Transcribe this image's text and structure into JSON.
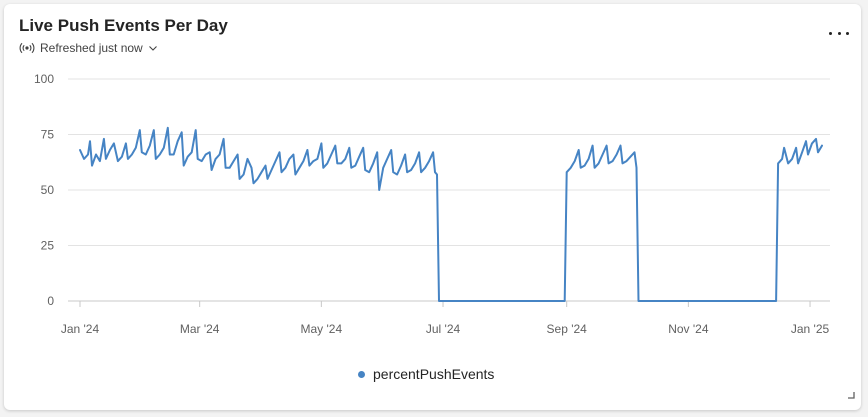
{
  "card": {
    "title": "Live Push Events Per Day",
    "refresh_label": "Refreshed just now",
    "refresh_icon": "broadcast-icon",
    "dropdown_icon": "chevron-down-icon",
    "more_icon": "more-horizontal-icon"
  },
  "colors": {
    "line": "#4684c4",
    "grid": "#e3e3e3",
    "axis": "#c8c8c8",
    "text": "#616161"
  },
  "chart_data": {
    "type": "line",
    "title": "Live Push Events Per Day",
    "xlabel": "",
    "ylabel": "",
    "ylim": [
      0,
      100
    ],
    "yticks": [
      0,
      25,
      50,
      75,
      100
    ],
    "xlim": [
      "2024-01-01",
      "2025-01-08"
    ],
    "xticks": [
      {
        "date": "2024-01-01",
        "label": "Jan '24"
      },
      {
        "date": "2024-03-01",
        "label": "Mar '24"
      },
      {
        "date": "2024-05-01",
        "label": "May '24"
      },
      {
        "date": "2024-07-01",
        "label": "Jul '24"
      },
      {
        "date": "2024-09-01",
        "label": "Sep '24"
      },
      {
        "date": "2024-11-01",
        "label": "Nov '24"
      },
      {
        "date": "2025-01-01",
        "label": "Jan '25"
      }
    ],
    "grid": true,
    "legend_position": "bottom",
    "series": [
      {
        "name": "percentPushEvents",
        "points": [
          [
            "2024-01-01",
            68
          ],
          [
            "2024-01-03",
            64
          ],
          [
            "2024-01-05",
            66
          ],
          [
            "2024-01-06",
            72
          ],
          [
            "2024-01-07",
            61
          ],
          [
            "2024-01-09",
            66
          ],
          [
            "2024-01-11",
            63
          ],
          [
            "2024-01-13",
            73
          ],
          [
            "2024-01-14",
            64
          ],
          [
            "2024-01-16",
            68
          ],
          [
            "2024-01-18",
            71
          ],
          [
            "2024-01-20",
            63
          ],
          [
            "2024-01-22",
            65
          ],
          [
            "2024-01-24",
            71
          ],
          [
            "2024-01-25",
            64
          ],
          [
            "2024-01-27",
            66
          ],
          [
            "2024-01-29",
            69
          ],
          [
            "2024-01-31",
            77
          ],
          [
            "2024-02-01",
            67
          ],
          [
            "2024-02-03",
            66
          ],
          [
            "2024-02-05",
            70
          ],
          [
            "2024-02-07",
            77
          ],
          [
            "2024-02-08",
            64
          ],
          [
            "2024-02-10",
            66
          ],
          [
            "2024-02-12",
            69
          ],
          [
            "2024-02-14",
            78
          ],
          [
            "2024-02-15",
            66
          ],
          [
            "2024-02-17",
            66
          ],
          [
            "2024-02-19",
            72
          ],
          [
            "2024-02-21",
            76
          ],
          [
            "2024-02-22",
            61
          ],
          [
            "2024-02-24",
            65
          ],
          [
            "2024-02-26",
            67
          ],
          [
            "2024-02-28",
            77
          ],
          [
            "2024-02-29",
            64
          ],
          [
            "2024-03-02",
            63
          ],
          [
            "2024-03-04",
            66
          ],
          [
            "2024-03-06",
            67
          ],
          [
            "2024-03-07",
            59
          ],
          [
            "2024-03-09",
            64
          ],
          [
            "2024-03-11",
            66
          ],
          [
            "2024-03-13",
            73
          ],
          [
            "2024-03-14",
            60
          ],
          [
            "2024-03-16",
            60
          ],
          [
            "2024-03-18",
            63
          ],
          [
            "2024-03-20",
            66
          ],
          [
            "2024-03-21",
            55
          ],
          [
            "2024-03-23",
            57
          ],
          [
            "2024-03-25",
            64
          ],
          [
            "2024-03-27",
            60
          ],
          [
            "2024-03-28",
            53
          ],
          [
            "2024-03-30",
            55
          ],
          [
            "2024-04-01",
            58
          ],
          [
            "2024-04-03",
            61
          ],
          [
            "2024-04-04",
            55
          ],
          [
            "2024-04-06",
            59
          ],
          [
            "2024-04-08",
            63
          ],
          [
            "2024-04-10",
            67
          ],
          [
            "2024-04-11",
            58
          ],
          [
            "2024-04-13",
            60
          ],
          [
            "2024-04-15",
            64
          ],
          [
            "2024-04-17",
            66
          ],
          [
            "2024-04-18",
            57
          ],
          [
            "2024-04-20",
            60
          ],
          [
            "2024-04-22",
            63
          ],
          [
            "2024-04-24",
            68
          ],
          [
            "2024-04-25",
            61
          ],
          [
            "2024-04-27",
            63
          ],
          [
            "2024-04-29",
            64
          ],
          [
            "2024-05-01",
            71
          ],
          [
            "2024-05-02",
            60
          ],
          [
            "2024-05-04",
            62
          ],
          [
            "2024-05-06",
            66
          ],
          [
            "2024-05-08",
            70
          ],
          [
            "2024-05-09",
            62
          ],
          [
            "2024-05-11",
            62
          ],
          [
            "2024-05-13",
            64
          ],
          [
            "2024-05-15",
            69
          ],
          [
            "2024-05-16",
            60
          ],
          [
            "2024-05-18",
            61
          ],
          [
            "2024-05-20",
            65
          ],
          [
            "2024-05-22",
            69
          ],
          [
            "2024-05-23",
            59
          ],
          [
            "2024-05-25",
            58
          ],
          [
            "2024-05-27",
            62
          ],
          [
            "2024-05-29",
            67
          ],
          [
            "2024-05-30",
            50
          ],
          [
            "2024-06-01",
            60
          ],
          [
            "2024-06-03",
            64
          ],
          [
            "2024-06-05",
            68
          ],
          [
            "2024-06-06",
            58
          ],
          [
            "2024-06-08",
            57
          ],
          [
            "2024-06-10",
            61
          ],
          [
            "2024-06-12",
            66
          ],
          [
            "2024-06-13",
            58
          ],
          [
            "2024-06-15",
            59
          ],
          [
            "2024-06-17",
            62
          ],
          [
            "2024-06-19",
            67
          ],
          [
            "2024-06-20",
            58
          ],
          [
            "2024-06-22",
            60
          ],
          [
            "2024-06-24",
            63
          ],
          [
            "2024-06-26",
            67
          ],
          [
            "2024-06-27",
            58
          ],
          [
            "2024-06-28",
            57
          ],
          [
            "2024-06-29",
            0
          ],
          [
            "2024-08-31",
            0
          ],
          [
            "2024-09-01",
            58
          ],
          [
            "2024-09-03",
            60
          ],
          [
            "2024-09-05",
            63
          ],
          [
            "2024-09-07",
            68
          ],
          [
            "2024-09-08",
            60
          ],
          [
            "2024-09-10",
            61
          ],
          [
            "2024-09-12",
            64
          ],
          [
            "2024-09-14",
            70
          ],
          [
            "2024-09-15",
            60
          ],
          [
            "2024-09-17",
            62
          ],
          [
            "2024-09-19",
            66
          ],
          [
            "2024-09-21",
            70
          ],
          [
            "2024-09-22",
            62
          ],
          [
            "2024-09-24",
            63
          ],
          [
            "2024-09-26",
            66
          ],
          [
            "2024-09-28",
            70
          ],
          [
            "2024-09-29",
            62
          ],
          [
            "2024-10-01",
            63
          ],
          [
            "2024-10-03",
            65
          ],
          [
            "2024-10-05",
            67
          ],
          [
            "2024-10-06",
            60
          ],
          [
            "2024-10-07",
            0
          ],
          [
            "2024-12-15",
            0
          ],
          [
            "2024-12-16",
            62
          ],
          [
            "2024-12-18",
            64
          ],
          [
            "2024-12-19",
            69
          ],
          [
            "2024-12-21",
            62
          ],
          [
            "2024-12-23",
            64
          ],
          [
            "2024-12-25",
            69
          ],
          [
            "2024-12-26",
            62
          ],
          [
            "2024-12-28",
            67
          ],
          [
            "2024-12-30",
            72
          ],
          [
            "2024-12-31",
            66
          ],
          [
            "2025-01-02",
            71
          ],
          [
            "2025-01-04",
            73
          ],
          [
            "2025-01-05",
            67
          ],
          [
            "2025-01-07",
            70
          ]
        ]
      }
    ]
  }
}
